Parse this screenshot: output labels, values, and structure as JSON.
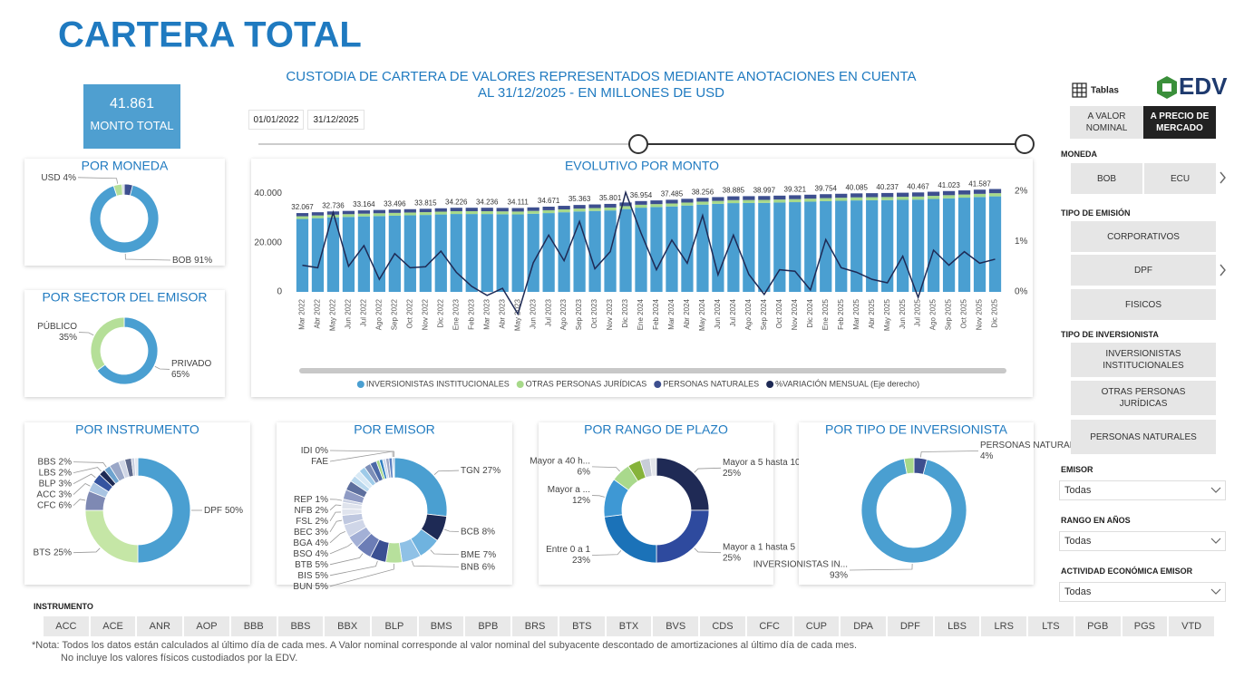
{
  "header": {
    "title": "CARTERA TOTAL",
    "subtitle": [
      "CUSTODIA DE CARTERA DE VALORES REPRESENTADOS MEDIANTE ANOTACIONES EN CUENTA",
      "AL 31/12/2025 - EN MILLONES DE USD"
    ]
  },
  "kpi": {
    "value": "41.861",
    "label": "MONTO TOTAL"
  },
  "date_range": [
    "01/01/2022",
    "31/12/2025"
  ],
  "toolbar": {
    "tables": "Tablas",
    "logo": "EDV"
  },
  "valuation": [
    "A VALOR NOMINAL",
    "A PRECIO DE MERCADO"
  ],
  "filters": [
    {
      "label": "MONEDA",
      "options": [
        "BOB",
        "ECU"
      ]
    },
    {
      "label": "TIPO DE EMISIÓN",
      "options": [
        "CORPORATIVOS",
        "DPF",
        "FISICOS"
      ]
    },
    {
      "label": "TIPO DE INVERSIONISTA",
      "options": [
        "INVERSIONISTAS INSTITUCIONALES",
        "OTRAS PERSONAS JURÍDICAS",
        "PERSONAS NATURALES"
      ]
    }
  ],
  "dropdowns": [
    {
      "label": "EMISOR",
      "value": "Todas"
    },
    {
      "label": "RANGO EN AÑOS",
      "value": "Todas"
    },
    {
      "label": "ACTIVIDAD ECONÓMICA EMISOR",
      "value": "Todas"
    }
  ],
  "instrument_filter": {
    "label": "INSTRUMENTO",
    "options": [
      "ACC",
      "ACE",
      "ANR",
      "AOP",
      "BBB",
      "BBS",
      "BBX",
      "BLP",
      "BMS",
      "BPB",
      "BRS",
      "BTS",
      "BTX",
      "BVS",
      "CDS",
      "CFC",
      "CUP",
      "DPA",
      "DPF",
      "LBS",
      "LRS",
      "LTS",
      "PGB",
      "PGS",
      "VTD"
    ]
  },
  "footnote": [
    "*Nota: Todos los datos están calculados al último día de cada mes. A Valor nominal corresponde al valor nominal del subyacente descontado de amortizaciones al último día de cada mes.",
    "No incluye los valores físicos custodiados por la EDV."
  ],
  "chart_data": [
    {
      "type": "donut",
      "title": "POR MONEDA",
      "categories": [
        null,
        "BOB",
        "USD",
        null
      ],
      "values": [
        4,
        91,
        4,
        1
      ],
      "value_labels": [
        null,
        "91%",
        "4%",
        null
      ],
      "colors": [
        "#3d4f8f",
        "#4a9fd1",
        "#b5df98",
        "#c9d0e2"
      ]
    },
    {
      "type": "donut",
      "title": "POR SECTOR DEL EMISOR",
      "categories": [
        "PRIVADO",
        "PÚBLICO"
      ],
      "values": [
        65,
        35
      ],
      "value_labels": [
        "65%",
        "35%"
      ],
      "colors": [
        "#4a9fd1",
        "#b5df98"
      ]
    },
    {
      "type": "combo",
      "title": "EVOLUTIVO POR MONTO",
      "categories": [
        "Mar 2022",
        "Abr 2022",
        "May 2022",
        "Jun 2022",
        "Jul 2022",
        "Ago 2022",
        "Sep 2022",
        "Oct 2022",
        "Nov 2022",
        "Dic 2022",
        "Ene 2023",
        "Feb 2023",
        "Mar 2023",
        "Abr 2023",
        "May 2023",
        "Jun 2023",
        "Jul 2023",
        "Ago 2023",
        "Sep 2023",
        "Oct 2023",
        "Nov 2023",
        "Dic 2023",
        "Ene 2024",
        "Feb 2024",
        "Mar 2024",
        "Abr 2024",
        "May 2024",
        "Jun 2024",
        "Jul 2024",
        "Ago 2024",
        "Sep 2024",
        "Oct 2024",
        "Nov 2024",
        "Dic 2024",
        "Ene 2025",
        "Feb 2025",
        "Mar 2025",
        "Abr 2025",
        "May 2025",
        "Jun 2025",
        "Jul 2025",
        "Ago 2025",
        "Sep 2025",
        "Oct 2025",
        "Nov 2025",
        "Dic 2025"
      ],
      "series": [
        {
          "name": "INVERSIONISTAS INSTITUCIONALES",
          "color": "#4a9fd1",
          "values": [
            29667,
            29987,
            30310,
            30511,
            30712,
            30865,
            31018,
            31159,
            31311,
            31503,
            31696,
            31687,
            31680,
            31601,
            31529,
            31795,
            32063,
            32399,
            32729,
            32933,
            33141,
            33707,
            34268,
            34521,
            34773,
            35145,
            35518,
            35819,
            36121,
            36163,
            36207,
            36357,
            36505,
            36711,
            36912,
            37065,
            37217,
            37279,
            37343,
            37443,
            37547,
            37817,
            38077,
            38341,
            38615,
            38876
          ]
        },
        {
          "name": "OTRAS PERSONAS JURÍDICAS",
          "color": "#a7d98a",
          "values": [
            1100,
            1104,
            1108,
            1112,
            1116,
            1120,
            1124,
            1128,
            1132,
            1136,
            1140,
            1144,
            1148,
            1152,
            1156,
            1160,
            1164,
            1168,
            1172,
            1176,
            1180,
            1184,
            1188,
            1192,
            1196,
            1200,
            1204,
            1208,
            1212,
            1216,
            1220,
            1224,
            1228,
            1232,
            1236,
            1240,
            1244,
            1248,
            1252,
            1256,
            1260,
            1264,
            1268,
            1272,
            1276,
            1280
          ]
        },
        {
          "name": "PERSONAS NATURALES",
          "color": "#3d4f8f",
          "values": [
            1300,
            1309,
            1318,
            1327,
            1336,
            1345,
            1354,
            1363,
            1372,
            1381,
            1390,
            1399,
            1408,
            1417,
            1426,
            1435,
            1444,
            1453,
            1462,
            1471,
            1480,
            1489,
            1498,
            1507,
            1516,
            1525,
            1534,
            1543,
            1552,
            1561,
            1570,
            1579,
            1588,
            1597,
            1606,
            1615,
            1624,
            1633,
            1642,
            1651,
            1660,
            1669,
            1678,
            1687,
            1696,
            1705
          ]
        },
        {
          "name": "%VARIACIÓN MENSUAL (Eje derecho)",
          "color": "#1e2a55",
          "axis": "y2",
          "values": [
            0.53,
            0.48,
            1.58,
            0.51,
            0.92,
            0.25,
            0.76,
            0.48,
            0.5,
            0.81,
            0.39,
            0.11,
            -0.07,
            0.07,
            -0.44,
            0.58,
            1.13,
            0.62,
            1.4,
            0.46,
            0.8,
            1.98,
            1.17,
            0.44,
            1.03,
            0.57,
            1.52,
            0.34,
            1.13,
            0.35,
            -0.05,
            0.44,
            0.41,
            0.04,
            1.04,
            0.48,
            0.39,
            0.25,
            0.18,
            0.71,
            -0.11,
            0.83,
            0.53,
            0.8,
            0.57,
            0.65
          ]
        }
      ],
      "totals": [
        32067,
        null,
        32736,
        null,
        33164,
        null,
        33496,
        null,
        33815,
        null,
        34226,
        null,
        34236,
        null,
        34111,
        null,
        34671,
        null,
        35363,
        null,
        35801,
        null,
        36954,
        null,
        37485,
        null,
        38256,
        null,
        38885,
        null,
        38997,
        null,
        39321,
        null,
        39754,
        null,
        40085,
        null,
        40237,
        null,
        40467,
        null,
        41023,
        null,
        41587,
        null
      ],
      "total_labels": [
        "32.067",
        null,
        "32.736",
        null,
        "33.164",
        null,
        "33.496",
        null,
        "33.815",
        null,
        "34.226",
        null,
        "34.236",
        null,
        "34.111",
        null,
        "34.671",
        null,
        "35.363",
        null,
        "35.801",
        null,
        "36.954",
        null,
        "37.485",
        null,
        "38.256",
        null,
        "38.885",
        null,
        "38.997",
        null,
        "39.321",
        null,
        "39.754",
        null,
        "40.085",
        null,
        "40.237",
        null,
        "40.467",
        null,
        "41.023",
        null,
        "41.587",
        null
      ],
      "ylim": [
        0,
        45000
      ],
      "yticks": [
        0,
        {
          "value": 20000,
          "label": "20.000"
        },
        {
          "value": 40000,
          "label": "40.000"
        }
      ],
      "y2lim": [
        0,
        2.2
      ],
      "y2ticks": [
        {
          "value": 0,
          "label": "0%"
        },
        {
          "value": 1,
          "label": "1%"
        },
        {
          "value": 2,
          "label": "2%"
        }
      ]
    },
    {
      "type": "donut",
      "title": "POR INSTRUMENTO",
      "categories": [
        "DPF",
        "BTS",
        "CFC",
        "ACC",
        "BLP",
        "LBS",
        "BBS",
        null,
        null,
        null,
        null,
        null
      ],
      "values": [
        50,
        25,
        6,
        3,
        3,
        2,
        2,
        3,
        2,
        2,
        1,
        1
      ],
      "value_labels": [
        "50%",
        "25%",
        "6%",
        "3%",
        "3%",
        "2%",
        "2%",
        null,
        null,
        null,
        null,
        null
      ],
      "colors": [
        "#4a9fd1",
        "#c5e6a6",
        "#7e89b3",
        "#a9c4e2",
        "#3554a0",
        "#1e2a55",
        "#6ea3cf",
        "#9aa7c7",
        "#d0d6e6",
        "#5f6a8c",
        "#c8cfe0",
        "#e3e6ee"
      ]
    },
    {
      "type": "donut",
      "title": "POR EMISOR",
      "categories": [
        "TGN",
        "BCB",
        "BME",
        "BNB",
        "BUN",
        "BIS",
        "BTB",
        "BSO",
        "BGA",
        "BEC",
        "FSL",
        "NFB",
        "REP",
        null,
        null,
        null,
        null,
        null,
        null,
        null,
        null,
        null,
        null,
        null,
        null,
        "FAE",
        "IDI"
      ],
      "values": [
        27,
        8,
        7,
        6,
        5,
        5,
        5,
        4,
        4,
        3,
        2,
        2,
        1,
        3,
        3,
        2,
        2,
        2,
        2,
        2,
        1,
        1,
        1,
        1,
        1,
        0.4,
        0.3
      ],
      "value_labels": [
        "27%",
        "8%",
        "7%",
        "6%",
        "5%",
        "5%",
        "5%",
        "4%",
        "4%",
        "3%",
        "2%",
        "2%",
        "1%",
        null,
        null,
        null,
        null,
        null,
        null,
        null,
        null,
        null,
        null,
        null,
        null,
        null,
        "0%"
      ],
      "colors": [
        "#4a9fd1",
        "#1e2a55",
        "#6fb3df",
        "#8fc1e6",
        "#b7e09c",
        "#3a4f92",
        "#6c7db6",
        "#a3b0d6",
        "#cfd6e8",
        "#bfc8e0",
        "#e0e4ee",
        "#dfe3ec",
        "#c9d0e2",
        "#8f9bc4",
        "#5d6f9e",
        "#b9d8ee",
        "#d8e9f5",
        "#9ecbe9",
        "#7d8fb8",
        "#4c6aa8",
        "#a8d88a",
        "#2f7fc0",
        "#cdd9ee",
        "#9fa9c6",
        "#5a7fc0",
        "#7fb8e0",
        "#3e5aa0"
      ]
    },
    {
      "type": "donut",
      "title": "POR RANGO DE PLAZO",
      "categories": [
        "Mayor a 5 hasta 10",
        "Mayor a 1 hasta 5",
        "Entre 0 a 1",
        "Mayor a ...",
        "Mayor a 40 h...",
        null,
        null,
        null
      ],
      "values": [
        25,
        25,
        23,
        12,
        6,
        4,
        3,
        2
      ],
      "value_labels": [
        "25%",
        "25%",
        "23%",
        "12%",
        "6%",
        null,
        null,
        null
      ],
      "colors": [
        "#1f2a55",
        "#2e4a9e",
        "#1b72b8",
        "#3e98d4",
        "#a9d98c",
        "#86b33a",
        "#c8cdd8",
        "#e4e6ea"
      ]
    },
    {
      "type": "donut",
      "title": "POR TIPO DE INVERSIONISTA",
      "categories": [
        "PERSONAS NATURALES",
        "INVERSIONISTAS IN...",
        null
      ],
      "values": [
        4,
        93,
        3
      ],
      "value_labels": [
        "4%",
        "93%",
        null
      ],
      "colors": [
        "#3d4f8f",
        "#4a9fd1",
        "#a7d98a"
      ]
    }
  ]
}
